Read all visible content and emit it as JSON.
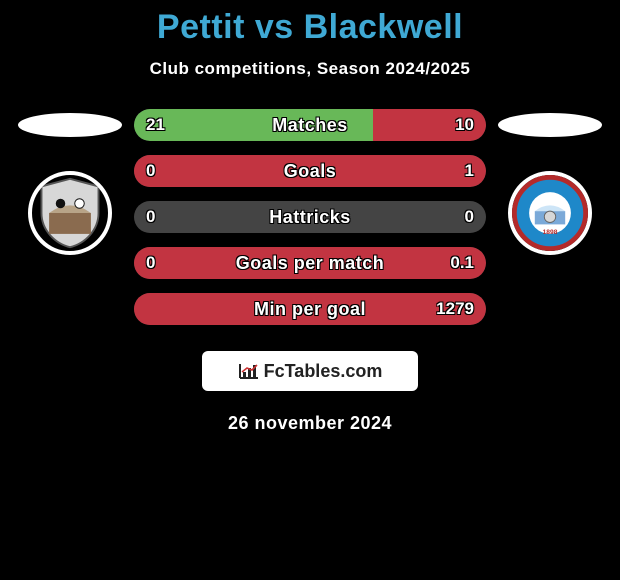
{
  "title": "Pettit vs Blackwell",
  "subtitle": "Club competitions, Season 2024/2025",
  "brand": "FcTables.com",
  "date": "26 november 2024",
  "title_color": "#3fa9d4",
  "text_color": "#ffffff",
  "background_color": "#000000",
  "bar_track_color": "#444444",
  "bar_left_color": "#68b858",
  "bar_right_color": "#c23441",
  "stats": [
    {
      "label": "Matches",
      "left_val": "21",
      "right_val": "10",
      "left_pct": 68,
      "right_pct": 32
    },
    {
      "label": "Goals",
      "left_val": "0",
      "right_val": "1",
      "left_pct": 0,
      "right_pct": 100
    },
    {
      "label": "Hattricks",
      "left_val": "0",
      "right_val": "0",
      "left_pct": 0,
      "right_pct": 0
    },
    {
      "label": "Goals per match",
      "left_val": "0",
      "right_val": "0.1",
      "left_pct": 0,
      "right_pct": 100
    },
    {
      "label": "Min per goal",
      "left_val": "",
      "right_val": "1279",
      "left_pct": 0,
      "right_pct": 100
    }
  ],
  "club_left": {
    "bg": "#d9d9d9",
    "name": "Club A"
  },
  "club_right": {
    "bg": "#1e88c9",
    "ring": "#b42a2a",
    "name": "Braintree Town FC"
  }
}
